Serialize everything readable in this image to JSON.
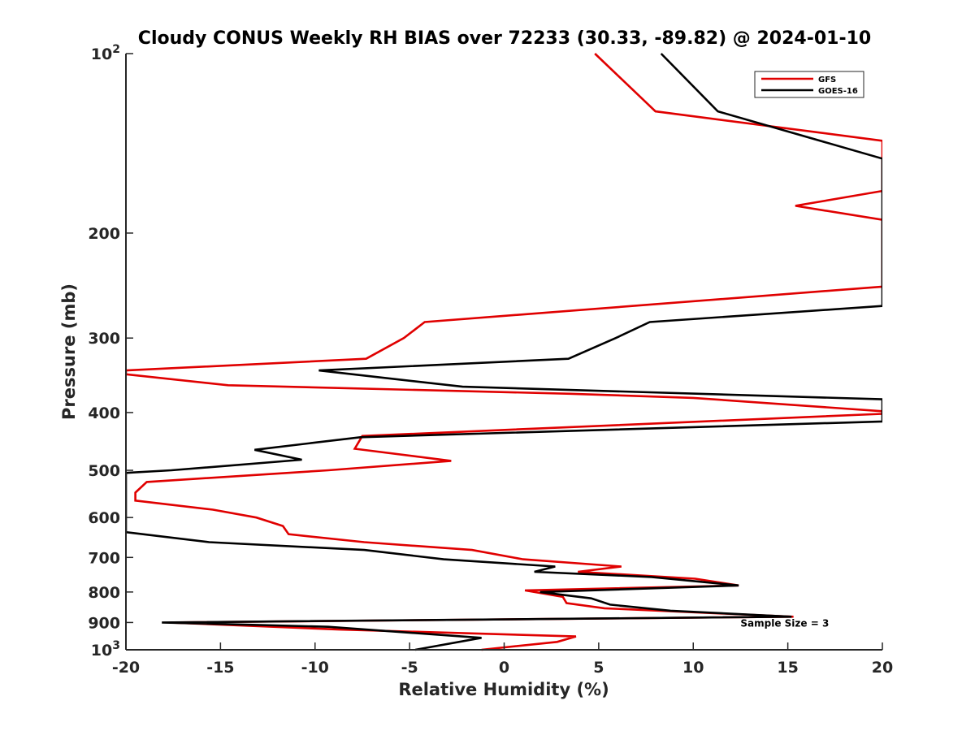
{
  "chart_data": {
    "type": "line",
    "title": "Cloudy CONUS Weekly RH BIAS over 72233 (30.33, -89.82) @ 2024-01-10",
    "xlabel": "Relative Humidity (%)",
    "ylabel": "Pressure (mb)",
    "xlim": [
      -20,
      20
    ],
    "ylim": [
      100,
      1000
    ],
    "yscale": "log",
    "y_reversed": true,
    "grid": false,
    "xticks": [
      "-20",
      "-15",
      "-10",
      "-5",
      "0",
      "5",
      "10",
      "15",
      "20"
    ],
    "yticks": [
      {
        "value": 100,
        "base": "10",
        "exp": "2"
      },
      {
        "value": 200,
        "label": "200"
      },
      {
        "value": 300,
        "label": "300"
      },
      {
        "value": 400,
        "label": "400"
      },
      {
        "value": 500,
        "label": "500"
      },
      {
        "value": 600,
        "label": "600"
      },
      {
        "value": 700,
        "label": "700"
      },
      {
        "value": 800,
        "label": "800"
      },
      {
        "value": 900,
        "label": "900"
      },
      {
        "value": 1000,
        "base": "10",
        "exp": "3"
      }
    ],
    "legend_position": "top-right",
    "annotation": "Sample Size = 3",
    "annotation_at": {
      "x": 12.5,
      "y": 900
    },
    "series": [
      {
        "name": "GFS",
        "color": "#e00000",
        "points": [
          [
            4.8,
            100
          ],
          [
            8.0,
            125
          ],
          [
            20.0,
            140
          ],
          [
            20.0,
            170
          ],
          [
            15.4,
            180
          ],
          [
            20.0,
            190
          ],
          [
            20.0,
            246
          ],
          [
            -4.2,
            282
          ],
          [
            -5.3,
            300
          ],
          [
            -7.3,
            325
          ],
          [
            -20.0,
            340
          ],
          [
            -20.0,
            345
          ],
          [
            -14.6,
            360
          ],
          [
            3.5,
            372
          ],
          [
            10.0,
            378
          ],
          [
            20.0,
            398
          ],
          [
            20.0,
            402
          ],
          [
            -7.5,
            438
          ],
          [
            -7.9,
            460
          ],
          [
            -2.8,
            482
          ],
          [
            -9.3,
            500
          ],
          [
            -18.9,
            523
          ],
          [
            -19.5,
            545
          ],
          [
            -19.5,
            562
          ],
          [
            -15.4,
            582
          ],
          [
            -13.1,
            600
          ],
          [
            -11.7,
            620
          ],
          [
            -11.4,
            640
          ],
          [
            -7.4,
            660
          ],
          [
            -1.7,
            680
          ],
          [
            1.0,
            705
          ],
          [
            6.2,
            725
          ],
          [
            3.9,
            740
          ],
          [
            10.1,
            760
          ],
          [
            12.4,
            780
          ],
          [
            1.1,
            795
          ],
          [
            3.1,
            815
          ],
          [
            3.3,
            835
          ],
          [
            5.3,
            852
          ],
          [
            15.3,
            880
          ],
          [
            -17.7,
            900
          ],
          [
            -8.7,
            925
          ],
          [
            3.8,
            950
          ],
          [
            2.8,
            970
          ],
          [
            -1.2,
            1000
          ]
        ]
      },
      {
        "name": "GOES-16",
        "color": "#000000",
        "points": [
          [
            8.3,
            100
          ],
          [
            11.3,
            125
          ],
          [
            20.0,
            150
          ],
          [
            20.0,
            265
          ],
          [
            7.7,
            282
          ],
          [
            5.9,
            300
          ],
          [
            3.4,
            325
          ],
          [
            -9.8,
            340
          ],
          [
            -2.2,
            362
          ],
          [
            20.0,
            380
          ],
          [
            20.0,
            414
          ],
          [
            -7.6,
            440
          ],
          [
            -13.2,
            462
          ],
          [
            -10.7,
            480
          ],
          [
            -17.6,
            500
          ],
          [
            -20.0,
            505
          ],
          [
            -20.0,
            635
          ],
          [
            -15.6,
            660
          ],
          [
            -7.4,
            680
          ],
          [
            -3.2,
            705
          ],
          [
            2.7,
            725
          ],
          [
            1.6,
            740
          ],
          [
            7.8,
            755
          ],
          [
            12.4,
            780
          ],
          [
            1.9,
            800
          ],
          [
            4.6,
            820
          ],
          [
            5.6,
            840
          ],
          [
            8.8,
            860
          ],
          [
            15.2,
            880
          ],
          [
            -18.1,
            900
          ],
          [
            -9.3,
            915
          ],
          [
            -1.2,
            955
          ],
          [
            -4.7,
            1000
          ]
        ]
      }
    ]
  }
}
